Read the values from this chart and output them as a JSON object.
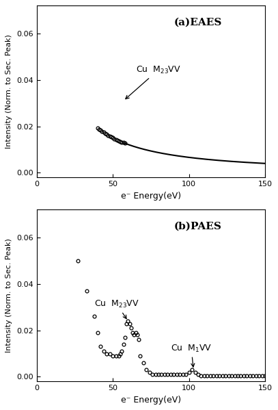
{
  "fig_width": 4.07,
  "fig_height": 5.99,
  "dpi": 100,
  "background_color": "#ffffff",
  "panel_a": {
    "label": "(a)EAES",
    "xlabel": "e⁻ Energy(eV)",
    "ylabel": "Intensity (Norm. to Sec. Peak)",
    "xlim": [
      0,
      150
    ],
    "ylim": [
      -0.002,
      0.072
    ],
    "yticks": [
      0.0,
      0.02,
      0.04,
      0.06
    ],
    "xticks": [
      0,
      50,
      100,
      150
    ]
  },
  "panel_b": {
    "label": "(b)PAES",
    "xlabel": "e⁻ Energy(eV)",
    "ylabel": "Intensity (Norm. to Sec. Peak)",
    "xlim": [
      0,
      150
    ],
    "ylim": [
      -0.002,
      0.072
    ],
    "yticks": [
      0.0,
      0.02,
      0.04,
      0.06
    ],
    "xticks": [
      0,
      50,
      100,
      150
    ]
  }
}
